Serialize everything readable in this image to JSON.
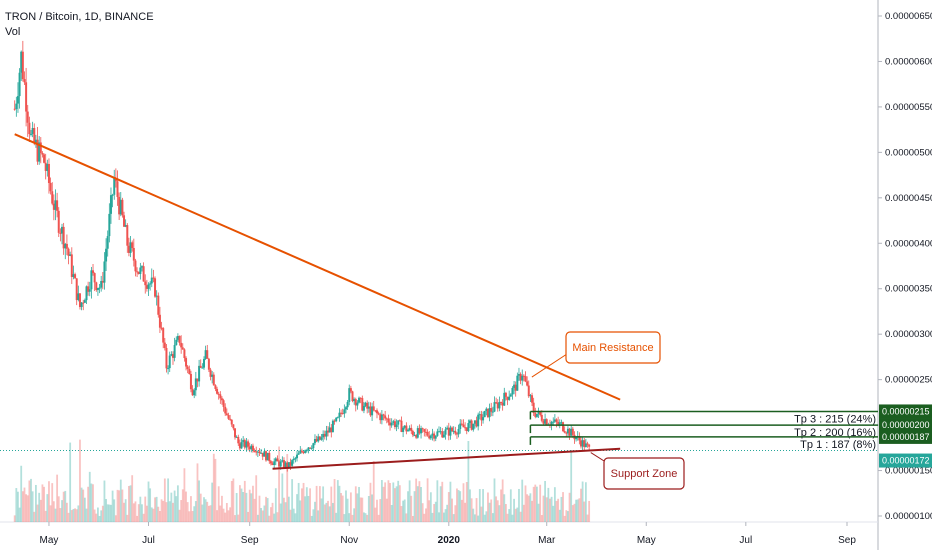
{
  "header": {
    "title": "TRON / Bitcoin, 1D, BINANCE",
    "indicator": "Vol"
  },
  "colors": {
    "up": "#26a69a",
    "down": "#ef5350",
    "resistance": "#e65100",
    "support": "#9b1c1c",
    "target": "#1b5e20",
    "current": "#26a69a"
  },
  "chart_data": {
    "type": "candlestick",
    "x_tick_labels": [
      "May",
      "Jul",
      "Sep",
      "Nov",
      "2020",
      "Mar",
      "May",
      "Jul",
      "Sep"
    ],
    "y_tick_labels": [
      "0.00000100",
      "0.00000150",
      "0.00000200",
      "0.00000250",
      "0.00000300",
      "0.00000350",
      "0.00000400",
      "0.00000450",
      "0.00000500",
      "0.00000550",
      "0.00000600",
      "0.00000650"
    ],
    "ylim": [
      8e-07,
      6.8e-06
    ],
    "price_path": [
      {
        "date": "2019-04-10",
        "price": 5.48e-06
      },
      {
        "date": "2019-04-14",
        "price": 6.05e-06
      },
      {
        "date": "2019-04-20",
        "price": 5.15e-06
      },
      {
        "date": "2019-04-28",
        "price": 4.9e-06
      },
      {
        "date": "2019-05-05",
        "price": 4.35e-06
      },
      {
        "date": "2019-05-12",
        "price": 3.95e-06
      },
      {
        "date": "2019-05-20",
        "price": 3.3e-06
      },
      {
        "date": "2019-05-27",
        "price": 3.65e-06
      },
      {
        "date": "2019-06-02",
        "price": 3.5e-06
      },
      {
        "date": "2019-06-10",
        "price": 4.7e-06
      },
      {
        "date": "2019-06-18",
        "price": 4e-06
      },
      {
        "date": "2019-06-25",
        "price": 3.7e-06
      },
      {
        "date": "2019-07-05",
        "price": 3.5e-06
      },
      {
        "date": "2019-07-12",
        "price": 2.65e-06
      },
      {
        "date": "2019-07-20",
        "price": 2.95e-06
      },
      {
        "date": "2019-07-28",
        "price": 2.4e-06
      },
      {
        "date": "2019-08-05",
        "price": 2.75e-06
      },
      {
        "date": "2019-08-15",
        "price": 2.25e-06
      },
      {
        "date": "2019-08-25",
        "price": 1.8e-06
      },
      {
        "date": "2019-09-05",
        "price": 1.75e-06
      },
      {
        "date": "2019-09-15",
        "price": 1.6e-06
      },
      {
        "date": "2019-09-25",
        "price": 1.55e-06
      },
      {
        "date": "2019-10-05",
        "price": 1.75e-06
      },
      {
        "date": "2019-10-15",
        "price": 1.85e-06
      },
      {
        "date": "2019-10-25",
        "price": 2.05e-06
      },
      {
        "date": "2019-11-01",
        "price": 2.35e-06
      },
      {
        "date": "2019-11-10",
        "price": 2.2e-06
      },
      {
        "date": "2019-11-20",
        "price": 2.1e-06
      },
      {
        "date": "2019-12-01",
        "price": 2e-06
      },
      {
        "date": "2019-12-10",
        "price": 1.92e-06
      },
      {
        "date": "2019-12-20",
        "price": 1.9e-06
      },
      {
        "date": "2020-01-01",
        "price": 1.93e-06
      },
      {
        "date": "2020-01-15",
        "price": 2e-06
      },
      {
        "date": "2020-01-28",
        "price": 2.18e-06
      },
      {
        "date": "2020-02-10",
        "price": 2.4e-06
      },
      {
        "date": "2020-02-15",
        "price": 2.58e-06
      },
      {
        "date": "2020-02-22",
        "price": 2.15e-06
      },
      {
        "date": "2020-03-01",
        "price": 2.05e-06
      },
      {
        "date": "2020-03-10",
        "price": 2e-06
      },
      {
        "date": "2020-03-20",
        "price": 1.85e-06
      },
      {
        "date": "2020-03-28",
        "price": 1.72e-06
      }
    ],
    "lines": [
      {
        "name": "Main Resistance",
        "from": {
          "date": "2019-04-10",
          "price": 5.2e-06
        },
        "to": {
          "date": "2020-04-15",
          "price": 2.28e-06
        }
      },
      {
        "name": "Support Zone",
        "from": {
          "date": "2019-09-15",
          "price": 1.52e-06
        },
        "to": {
          "date": "2020-04-15",
          "price": 1.74e-06
        }
      }
    ],
    "targets": [
      {
        "label": "Tp 3 : 215 (24%)",
        "price": 2.15e-06,
        "tag": "0.00000215"
      },
      {
        "label": "Tp 2 : 200 (16%)",
        "price": 2e-06,
        "tag": "0.00000200"
      },
      {
        "label": "Tp 1 : 187 (8%)",
        "price": 1.87e-06,
        "tag": "0.00000187"
      }
    ],
    "current": {
      "price": 1.72e-06,
      "tag": "0.00000172"
    },
    "annotations": {
      "resistance": "Main Resistance",
      "support": "Support Zone"
    }
  }
}
